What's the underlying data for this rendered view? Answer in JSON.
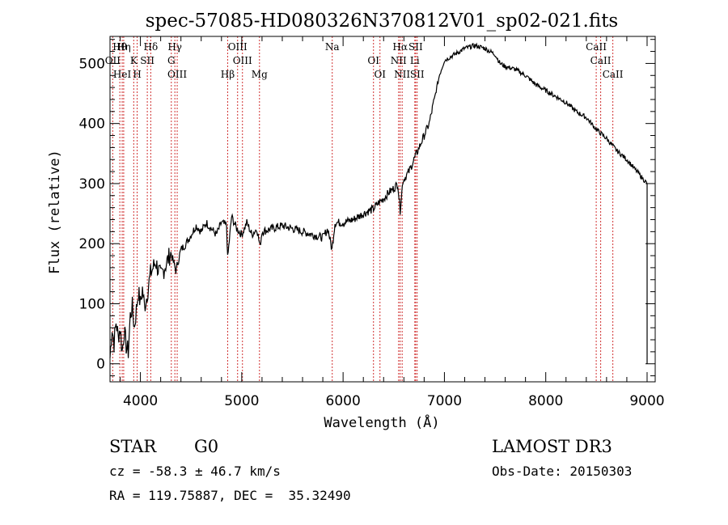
{
  "chart_data": {
    "type": "line",
    "title": "spec-57085-HD080326N370812V01_sp02-021.fits",
    "xlabel": "Wavelength (Å)",
    "ylabel": "Flux (relative)",
    "xlim": [
      3700,
      9080
    ],
    "ylim": [
      -30,
      545
    ],
    "xticks": [
      4000,
      5000,
      6000,
      7000,
      8000,
      9000
    ],
    "yticks": [
      0,
      100,
      200,
      300,
      400,
      500
    ],
    "series": [
      {
        "name": "spectrum",
        "points": [
          [
            3700,
            10
          ],
          [
            3720,
            60
          ],
          [
            3740,
            35
          ],
          [
            3760,
            70
          ],
          [
            3780,
            45
          ],
          [
            3800,
            60
          ],
          [
            3820,
            20
          ],
          [
            3840,
            55
          ],
          [
            3860,
            30
          ],
          [
            3880,
            20
          ],
          [
            3900,
            80
          ],
          [
            3920,
            95
          ],
          [
            3940,
            60
          ],
          [
            3960,
            90
          ],
          [
            3980,
            120
          ],
          [
            4000,
            100
          ],
          [
            4020,
            125
          ],
          [
            4040,
            95
          ],
          [
            4060,
            110
          ],
          [
            4080,
            130
          ],
          [
            4100,
            150
          ],
          [
            4150,
            170
          ],
          [
            4200,
            145
          ],
          [
            4250,
            165
          ],
          [
            4300,
            185
          ],
          [
            4350,
            155
          ],
          [
            4400,
            190
          ],
          [
            4450,
            200
          ],
          [
            4500,
            215
          ],
          [
            4550,
            230
          ],
          [
            4600,
            220
          ],
          [
            4650,
            235
          ],
          [
            4700,
            225
          ],
          [
            4750,
            215
          ],
          [
            4800,
            235
          ],
          [
            4850,
            230
          ],
          [
            4861,
            175
          ],
          [
            4900,
            245
          ],
          [
            4950,
            225
          ],
          [
            5000,
            215
          ],
          [
            5050,
            235
          ],
          [
            5100,
            215
          ],
          [
            5150,
            225
          ],
          [
            5180,
            195
          ],
          [
            5200,
            220
          ],
          [
            5300,
            225
          ],
          [
            5400,
            230
          ],
          [
            5500,
            225
          ],
          [
            5600,
            220
          ],
          [
            5700,
            215
          ],
          [
            5800,
            210
          ],
          [
            5850,
            225
          ],
          [
            5890,
            190
          ],
          [
            5920,
            235
          ],
          [
            6000,
            235
          ],
          [
            6100,
            240
          ],
          [
            6200,
            250
          ],
          [
            6300,
            258
          ],
          [
            6350,
            268
          ],
          [
            6400,
            275
          ],
          [
            6450,
            285
          ],
          [
            6500,
            292
          ],
          [
            6540,
            300
          ],
          [
            6563,
            255
          ],
          [
            6590,
            305
          ],
          [
            6650,
            320
          ],
          [
            6700,
            340
          ],
          [
            6750,
            360
          ],
          [
            6800,
            380
          ],
          [
            6850,
            400
          ],
          [
            6900,
            440
          ],
          [
            6950,
            480
          ],
          [
            7000,
            505
          ],
          [
            7100,
            515
          ],
          [
            7200,
            525
          ],
          [
            7300,
            530
          ],
          [
            7400,
            525
          ],
          [
            7500,
            515
          ],
          [
            7550,
            500
          ],
          [
            7600,
            495
          ],
          [
            7700,
            490
          ],
          [
            7800,
            480
          ],
          [
            7900,
            465
          ],
          [
            8000,
            455
          ],
          [
            8100,
            445
          ],
          [
            8200,
            435
          ],
          [
            8300,
            420
          ],
          [
            8400,
            410
          ],
          [
            8500,
            390
          ],
          [
            8600,
            375
          ],
          [
            8700,
            355
          ],
          [
            8800,
            340
          ],
          [
            8900,
            320
          ],
          [
            9000,
            300
          ],
          [
            9000,
            0
          ]
        ]
      }
    ],
    "lines": [
      {
        "name": "Hθ",
        "wl": 3797
      },
      {
        "name": "OII",
        "wl": 3727
      },
      {
        "name": "HeI",
        "wl": 3820
      },
      {
        "name": "Hη",
        "wl": 3835
      },
      {
        "name": "K",
        "wl": 3934
      },
      {
        "name": "H",
        "wl": 3968
      },
      {
        "name": "Hδ",
        "wl": 4102
      },
      {
        "name": "SII",
        "wl": 4068
      },
      {
        "name": "OIII",
        "wl": 4363
      },
      {
        "name": "Hγ",
        "wl": 4340
      },
      {
        "name": "G",
        "wl": 4305
      },
      {
        "name": "Hβ",
        "wl": 4861
      },
      {
        "name": "OIII",
        "wl": 4959
      },
      {
        "name": "OIII",
        "wl": 5007
      },
      {
        "name": "Mg",
        "wl": 5175
      },
      {
        "name": "Na",
        "wl": 5893
      },
      {
        "name": "OI",
        "wl": 6300
      },
      {
        "name": "OI",
        "wl": 6364
      },
      {
        "name": "Hα",
        "wl": 6563
      },
      {
        "name": "NII",
        "wl": 6548
      },
      {
        "name": "NII",
        "wl": 6583
      },
      {
        "name": "SII",
        "wl": 6716
      },
      {
        "name": "Li",
        "wl": 6708
      },
      {
        "name": "SII",
        "wl": 6731
      },
      {
        "name": "CaII",
        "wl": 8498
      },
      {
        "name": "CaII",
        "wl": 8542
      },
      {
        "name": "CaII",
        "wl": 8662
      }
    ]
  },
  "info": {
    "class": "STAR",
    "subclass": "G0",
    "cz": "cz = -58.3 ± 46.7 km/s",
    "radec": "RA = 119.75887, DEC =  35.32490",
    "survey": "LAMOST DR3",
    "obsdate": "Obs-Date: 20150303"
  },
  "colors": {
    "line": "#000000",
    "marker": "#d03030"
  }
}
